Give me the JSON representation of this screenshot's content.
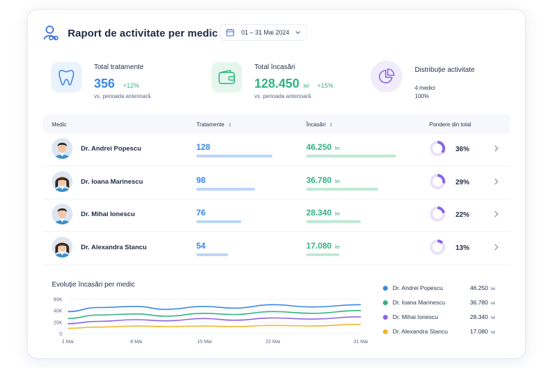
{
  "header": {
    "title": "Raport de activitate per medic",
    "date_range": "01 – 31 Mai 2024",
    "icon": "doctor-icon"
  },
  "kpis": {
    "treatments": {
      "label": "Total tratamente",
      "value": "356",
      "change": "+12%",
      "sub": "vs. perioada anterioară",
      "icon": "tooth-icon",
      "color": "#3a86e6"
    },
    "revenue": {
      "label": "Total încasări",
      "value": "128.450",
      "unit": "lei",
      "change": "+15%",
      "sub": "vs. perioada anterioară",
      "icon": "wallet-icon",
      "color": "#2fb380"
    },
    "distribution": {
      "label": "Distribuție activitate",
      "line1": "4 medici",
      "line2": "100%",
      "icon": "pie-chart-icon",
      "color": "#8a63e6"
    }
  },
  "table": {
    "columns": {
      "doctor": "Medic",
      "treatments": "Tratamente",
      "revenue": "Încasări",
      "share": "Pondere din total"
    },
    "rows": [
      {
        "name": "Dr. Andrei Popescu",
        "treatments": "128",
        "treat_fraction": 1.0,
        "revenue": "46.250",
        "revenue_unit": "lei",
        "rev_fraction": 1.0,
        "share": "36%",
        "share_value": 0.36,
        "avatar": "male-doctor-avatar"
      },
      {
        "name": "Dr. Ioana Marinescu",
        "treatments": "98",
        "treat_fraction": 0.77,
        "revenue": "36.780",
        "revenue_unit": "lei",
        "rev_fraction": 0.8,
        "share": "29%",
        "share_value": 0.29,
        "avatar": "female-doctor-avatar"
      },
      {
        "name": "Dr. Mihai Ionescu",
        "treatments": "76",
        "treat_fraction": 0.59,
        "revenue": "28.340",
        "revenue_unit": "lei",
        "rev_fraction": 0.61,
        "share": "22%",
        "share_value": 0.22,
        "avatar": "male-doctor-avatar"
      },
      {
        "name": "Dr. Alexandra Stancu",
        "treatments": "54",
        "treat_fraction": 0.42,
        "revenue": "17.080",
        "revenue_unit": "lei",
        "rev_fraction": 0.37,
        "share": "13%",
        "share_value": 0.13,
        "avatar": "female-doctor-avatar"
      }
    ]
  },
  "chart": {
    "title": "Evoluție încasări per medic"
  },
  "chart_data": {
    "type": "line",
    "title": "Evoluție încasări per medic",
    "x_ticks": [
      "1 Mai",
      "8 Mai",
      "15 Mai",
      "22 Mai",
      "31 Mai"
    ],
    "y_ticks": [
      "60K",
      "40K",
      "20K",
      "0"
    ],
    "ylim": [
      0,
      60000
    ],
    "x": [
      1,
      4,
      8,
      11,
      15,
      18,
      22,
      26,
      31
    ],
    "series": [
      {
        "name": "Dr. Andrei Popescu",
        "color": "#3a86e6",
        "values": [
          38000,
          45000,
          47000,
          42000,
          47000,
          44000,
          50000,
          46000,
          50000
        ]
      },
      {
        "name": "Dr. Ioana Marinescu",
        "color": "#2fb380",
        "values": [
          26000,
          32000,
          34000,
          30000,
          35000,
          33000,
          38000,
          35000,
          40000
        ]
      },
      {
        "name": "Dr. Mihai Ionescu",
        "color": "#8a63e6",
        "values": [
          17000,
          21000,
          24000,
          22000,
          26000,
          23000,
          27000,
          25000,
          29000
        ]
      },
      {
        "name": "Dr. Alexandra Stancu",
        "color": "#f2b62a",
        "values": [
          9000,
          11000,
          13000,
          12000,
          13000,
          12000,
          14000,
          13000,
          16000
        ]
      }
    ],
    "grid": true
  },
  "legend": [
    {
      "name": "Dr. Andrei Popescu",
      "value": "46.250",
      "unit": "lei",
      "color": "#3a86e6"
    },
    {
      "name": "Dr. Ioana Marinescu",
      "value": "36.780",
      "unit": "lei",
      "color": "#2fb380"
    },
    {
      "name": "Dr. Mihai Ionescu",
      "value": "28.340",
      "unit": "lei",
      "color": "#8a63e6"
    },
    {
      "name": "Dr. Alexandra Stancu",
      "value": "17.080",
      "unit": "lei",
      "color": "#f2b62a"
    }
  ]
}
